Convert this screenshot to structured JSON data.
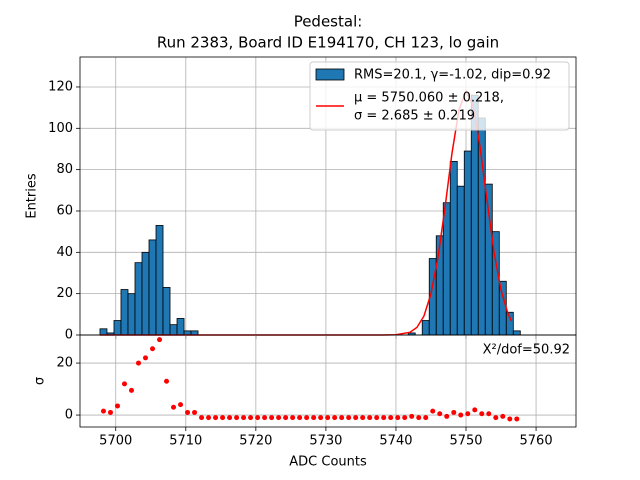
{
  "chart_data": [
    {
      "type": "histogram",
      "title_lines": [
        "Pedestal:",
        "Run 2383, Board ID E194170, CH 123, lo gain"
      ],
      "ylabel": "Entries",
      "bins": [
        5697.75,
        5698.75,
        5699.75,
        5700.75,
        5701.75,
        5702.75,
        5703.75,
        5704.75,
        5705.75,
        5706.75,
        5707.75,
        5708.75,
        5709.75,
        5710.75,
        5711.75,
        5712.75,
        5713.75,
        5714.75,
        5715.75,
        5716.75,
        5717.75,
        5718.75,
        5719.75,
        5720.75,
        5721.75,
        5722.75,
        5723.75,
        5724.75,
        5725.75,
        5726.75,
        5727.75,
        5728.75,
        5729.75,
        5730.75,
        5731.75,
        5732.75,
        5733.75,
        5734.75,
        5735.75,
        5736.75,
        5737.75,
        5738.75,
        5739.75,
        5740.75,
        5741.75,
        5742.75,
        5743.75,
        5744.75,
        5745.75,
        5746.75,
        5747.75,
        5748.75,
        5749.75,
        5750.75,
        5751.75,
        5752.75,
        5753.75,
        5754.75,
        5755.75,
        5756.75,
        5757.75
      ],
      "series": [
        {
          "name": "RMS=20.1, γ=-1.02, dip=0.92",
          "color": "#1f77b4",
          "values": [
            3,
            1,
            7,
            22,
            20,
            35,
            40,
            46,
            53,
            23,
            5,
            8,
            2,
            2,
            0,
            0,
            0,
            0,
            0,
            0,
            0,
            0,
            0,
            0,
            0,
            0,
            0,
            0,
            0,
            0,
            0,
            0,
            0,
            0,
            0,
            0,
            0,
            0,
            0,
            0,
            0,
            0,
            0,
            0,
            1,
            0,
            7,
            37,
            48,
            64,
            84,
            72,
            89,
            116,
            105,
            73,
            50,
            26,
            11,
            2
          ]
        }
      ],
      "fit": {
        "label_lines": [
          "μ = 5750.060 ± 0.218,",
          "σ = 2.685 ± 0.219"
        ],
        "color": "#ff0000",
        "x": [
          5697.75,
          5738,
          5740,
          5742,
          5743,
          5744,
          5745,
          5746,
          5747,
          5748,
          5749,
          5750,
          5751,
          5752,
          5753,
          5754,
          5755,
          5756,
          5756.5
        ],
        "values": [
          0,
          0,
          0.1,
          1.3,
          3.7,
          9.2,
          20,
          37.6,
          61.6,
          88,
          109,
          118,
          111,
          91,
          65,
          40,
          21.7,
          10.2,
          6.7
        ]
      },
      "xlim": [
        5694.9,
        5765.7
      ],
      "xticks": [
        5700,
        5710,
        5720,
        5730,
        5740,
        5750,
        5760
      ],
      "ylim": [
        0,
        134.5
      ],
      "yticks": [
        0,
        20,
        40,
        60,
        80,
        100,
        120
      ],
      "grid": true,
      "legend": "upper right"
    },
    {
      "type": "scatter",
      "ylabel": "σ",
      "xlabel": "ADC Counts",
      "annotation": "Χ²/dof=50.92",
      "color": "#ff0000",
      "x": [
        5698.25,
        5699.25,
        5700.25,
        5701.25,
        5702.25,
        5703.25,
        5704.25,
        5705.25,
        5706.25,
        5707.25,
        5708.25,
        5709.25,
        5710.25,
        5711.25,
        5712.25,
        5713.25,
        5714.25,
        5715.25,
        5716.25,
        5717.25,
        5718.25,
        5719.25,
        5720.25,
        5721.25,
        5722.25,
        5723.25,
        5724.25,
        5725.25,
        5726.25,
        5727.25,
        5728.25,
        5729.25,
        5730.25,
        5731.25,
        5732.25,
        5733.25,
        5734.25,
        5735.25,
        5736.25,
        5737.25,
        5738.25,
        5739.25,
        5740.25,
        5741.25,
        5742.25,
        5743.25,
        5744.25,
        5745.25,
        5746.25,
        5747.25,
        5748.25,
        5749.25,
        5750.25,
        5751.25,
        5752.25,
        5753.25,
        5754.25,
        5755.25,
        5756.25,
        5757.25
      ],
      "values": [
        1.5,
        1,
        3.5,
        12,
        9.5,
        20,
        22,
        25.5,
        29,
        13,
        3,
        4,
        1,
        1,
        -1,
        -1,
        -1,
        -1,
        -1,
        -1,
        -1,
        -1,
        -1,
        -1,
        -1,
        -1,
        -1,
        -1,
        -1,
        -1,
        -1,
        -1,
        -1,
        -1,
        -1,
        -1,
        -1,
        -1,
        -1,
        -1,
        -1,
        -1,
        -1,
        -1,
        -0.5,
        -1,
        -1,
        1.5,
        0.5,
        -0.5,
        1,
        0,
        0.5,
        2,
        0.5,
        0.5,
        -1,
        -0.5,
        -1.5,
        -1.5
      ],
      "xlim": [
        5694.9,
        5765.7
      ],
      "xticks": [
        5700,
        5710,
        5720,
        5730,
        5740,
        5750,
        5760
      ],
      "ylim": [
        -4.6,
        30.8
      ],
      "yticks": [
        0,
        20
      ],
      "grid": true
    }
  ]
}
